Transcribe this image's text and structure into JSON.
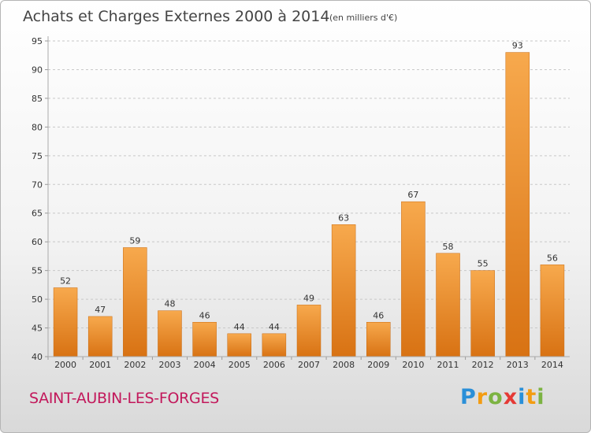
{
  "chart_data": {
    "type": "bar",
    "title": "Achats et Charges Externes 2000 à 2014",
    "subtitle": "(en milliers d'€)",
    "categories": [
      "2000",
      "2001",
      "2002",
      "2003",
      "2004",
      "2005",
      "2006",
      "2007",
      "2008",
      "2009",
      "2010",
      "2011",
      "2012",
      "2013",
      "2014"
    ],
    "values": [
      52,
      47,
      59,
      48,
      46,
      44,
      44,
      49,
      63,
      46,
      67,
      58,
      55,
      93,
      56
    ],
    "ylim": [
      40,
      95
    ],
    "yticks": [
      40,
      45,
      50,
      55,
      60,
      65,
      70,
      75,
      80,
      85,
      90,
      95
    ],
    "grid": "horizontal-dashed",
    "bar_color_light": "#f7a94d",
    "bar_color_dark": "#d87213"
  },
  "commune_name": "SAINT-AUBIN-LES-FORGES",
  "brand": {
    "text": "Proxiti",
    "letters": [
      "P",
      "r",
      "o",
      "x",
      "i",
      "t",
      "i"
    ],
    "colors": [
      "#2a8fd8",
      "#f39c12",
      "#7cb342",
      "#e53935",
      "#2a8fd8",
      "#f39c12",
      "#7cb342"
    ]
  }
}
